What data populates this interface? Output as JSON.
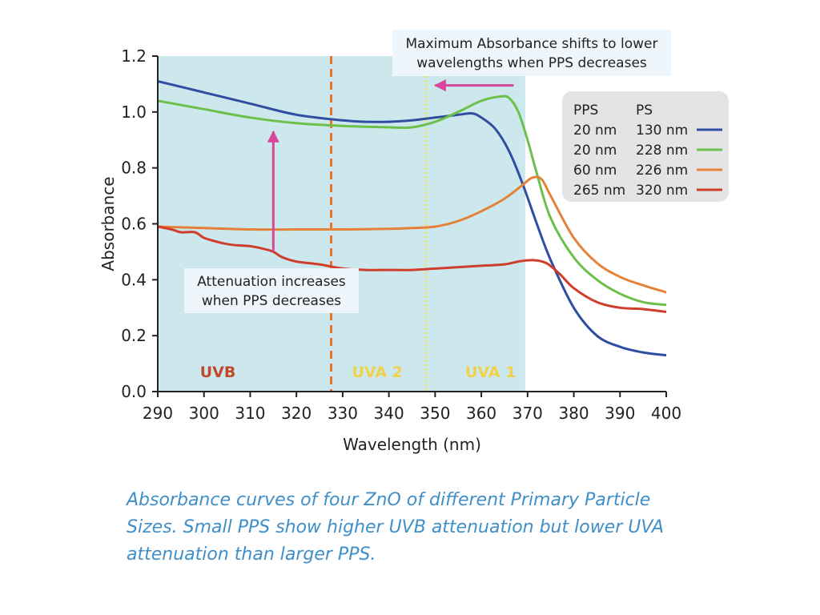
{
  "chart_data": {
    "type": "line",
    "xlabel": "Wavelength (nm)",
    "ylabel": "Absorbance",
    "xlim": [
      290,
      400
    ],
    "ylim": [
      0,
      1.2
    ],
    "x_ticks": [
      290,
      300,
      310,
      320,
      330,
      340,
      350,
      360,
      370,
      380,
      390,
      400
    ],
    "y_ticks": [
      0.0,
      0.2,
      0.4,
      0.6,
      0.8,
      1.0,
      1.2
    ],
    "grid": false,
    "shaded_region": {
      "x_from": 290,
      "x_to": 369.5,
      "color": "#cde8ec"
    },
    "vertical_lines": [
      {
        "x": 327.5,
        "color": "#e8742e",
        "style": "dashed"
      },
      {
        "x": 348,
        "color": "#f2e24b",
        "style": "dotted"
      }
    ],
    "regions": [
      {
        "label": "UVB",
        "x": 303,
        "color": "#c0492d"
      },
      {
        "label": "UVA 2",
        "x": 337.5,
        "color": "#f0d24a"
      },
      {
        "label": "UVA 1",
        "x": 362,
        "color": "#f0d24a"
      }
    ],
    "legend": {
      "position": "top-right",
      "header": [
        "PPS",
        "PS"
      ],
      "entries": [
        {
          "pps": "20 nm",
          "ps": "130 nm",
          "color": "#2f4ea2"
        },
        {
          "pps": "20 nm",
          "ps": "228 nm",
          "color": "#6cc04a"
        },
        {
          "pps": "60 nm",
          "ps": "226 nm",
          "color": "#e5823a"
        },
        {
          "pps": "265 nm",
          "ps": "320 nm",
          "color": "#cf3e2b"
        }
      ]
    },
    "series": [
      {
        "color": "#2f4ea2",
        "x": [
          290,
          300,
          310,
          320,
          330,
          335,
          340,
          345,
          350,
          355,
          358,
          360,
          363,
          366,
          369,
          372,
          375,
          380,
          385,
          390,
          395,
          400
        ],
        "y": [
          1.11,
          1.07,
          1.03,
          0.99,
          0.97,
          0.965,
          0.965,
          0.97,
          0.98,
          0.99,
          0.995,
          0.98,
          0.94,
          0.86,
          0.74,
          0.6,
          0.47,
          0.3,
          0.2,
          0.16,
          0.14,
          0.13
        ]
      },
      {
        "color": "#6cc04a",
        "x": [
          290,
          300,
          310,
          320,
          330,
          340,
          345,
          350,
          355,
          360,
          364,
          366,
          368,
          370,
          372,
          375,
          380,
          385,
          390,
          395,
          400
        ],
        "y": [
          1.04,
          1.01,
          0.98,
          0.96,
          0.95,
          0.945,
          0.945,
          0.965,
          1.0,
          1.04,
          1.055,
          1.05,
          1.0,
          0.9,
          0.78,
          0.62,
          0.48,
          0.4,
          0.35,
          0.32,
          0.31
        ]
      },
      {
        "color": "#e5823a",
        "x": [
          290,
          300,
          310,
          320,
          330,
          340,
          345,
          350,
          355,
          360,
          365,
          369,
          371,
          373,
          375,
          380,
          385,
          390,
          395,
          400
        ],
        "y": [
          0.59,
          0.585,
          0.58,
          0.58,
          0.58,
          0.582,
          0.585,
          0.59,
          0.61,
          0.645,
          0.69,
          0.74,
          0.765,
          0.76,
          0.7,
          0.55,
          0.46,
          0.41,
          0.38,
          0.355
        ]
      },
      {
        "color": "#cf3e2b",
        "x": [
          290,
          293,
          295,
          298,
          300,
          303,
          306,
          310,
          313,
          315,
          317,
          320,
          325,
          330,
          335,
          340,
          345,
          350,
          355,
          360,
          365,
          368,
          371,
          374,
          377,
          380,
          385,
          390,
          395,
          400
        ],
        "y": [
          0.59,
          0.58,
          0.57,
          0.57,
          0.55,
          0.535,
          0.525,
          0.52,
          0.51,
          0.5,
          0.48,
          0.465,
          0.455,
          0.44,
          0.435,
          0.435,
          0.435,
          0.44,
          0.445,
          0.45,
          0.455,
          0.465,
          0.47,
          0.46,
          0.42,
          0.37,
          0.32,
          0.3,
          0.295,
          0.285
        ]
      }
    ],
    "annotations": [
      {
        "id": "shift",
        "lines": [
          "Maximum Absorbance shifts to lower",
          "wavelengths when PPS decreases"
        ]
      },
      {
        "id": "attenuation",
        "lines": [
          "Attenuation increases",
          "when PPS decreases"
        ]
      }
    ],
    "arrows": [
      {
        "id": "shift-arrow",
        "from": [
          367,
          1.095
        ],
        "to": [
          350,
          1.095
        ],
        "color": "#d8459b"
      },
      {
        "id": "attenuation-arrow",
        "from": [
          315,
          0.5
        ],
        "to": [
          315,
          0.93
        ],
        "color": "#d8459b"
      }
    ]
  },
  "caption": "Absorbance curves of four ZnO of different Primary Particle Sizes. Small PPS show higher UVB attenuation but lower UVA attenuation than larger PPS."
}
